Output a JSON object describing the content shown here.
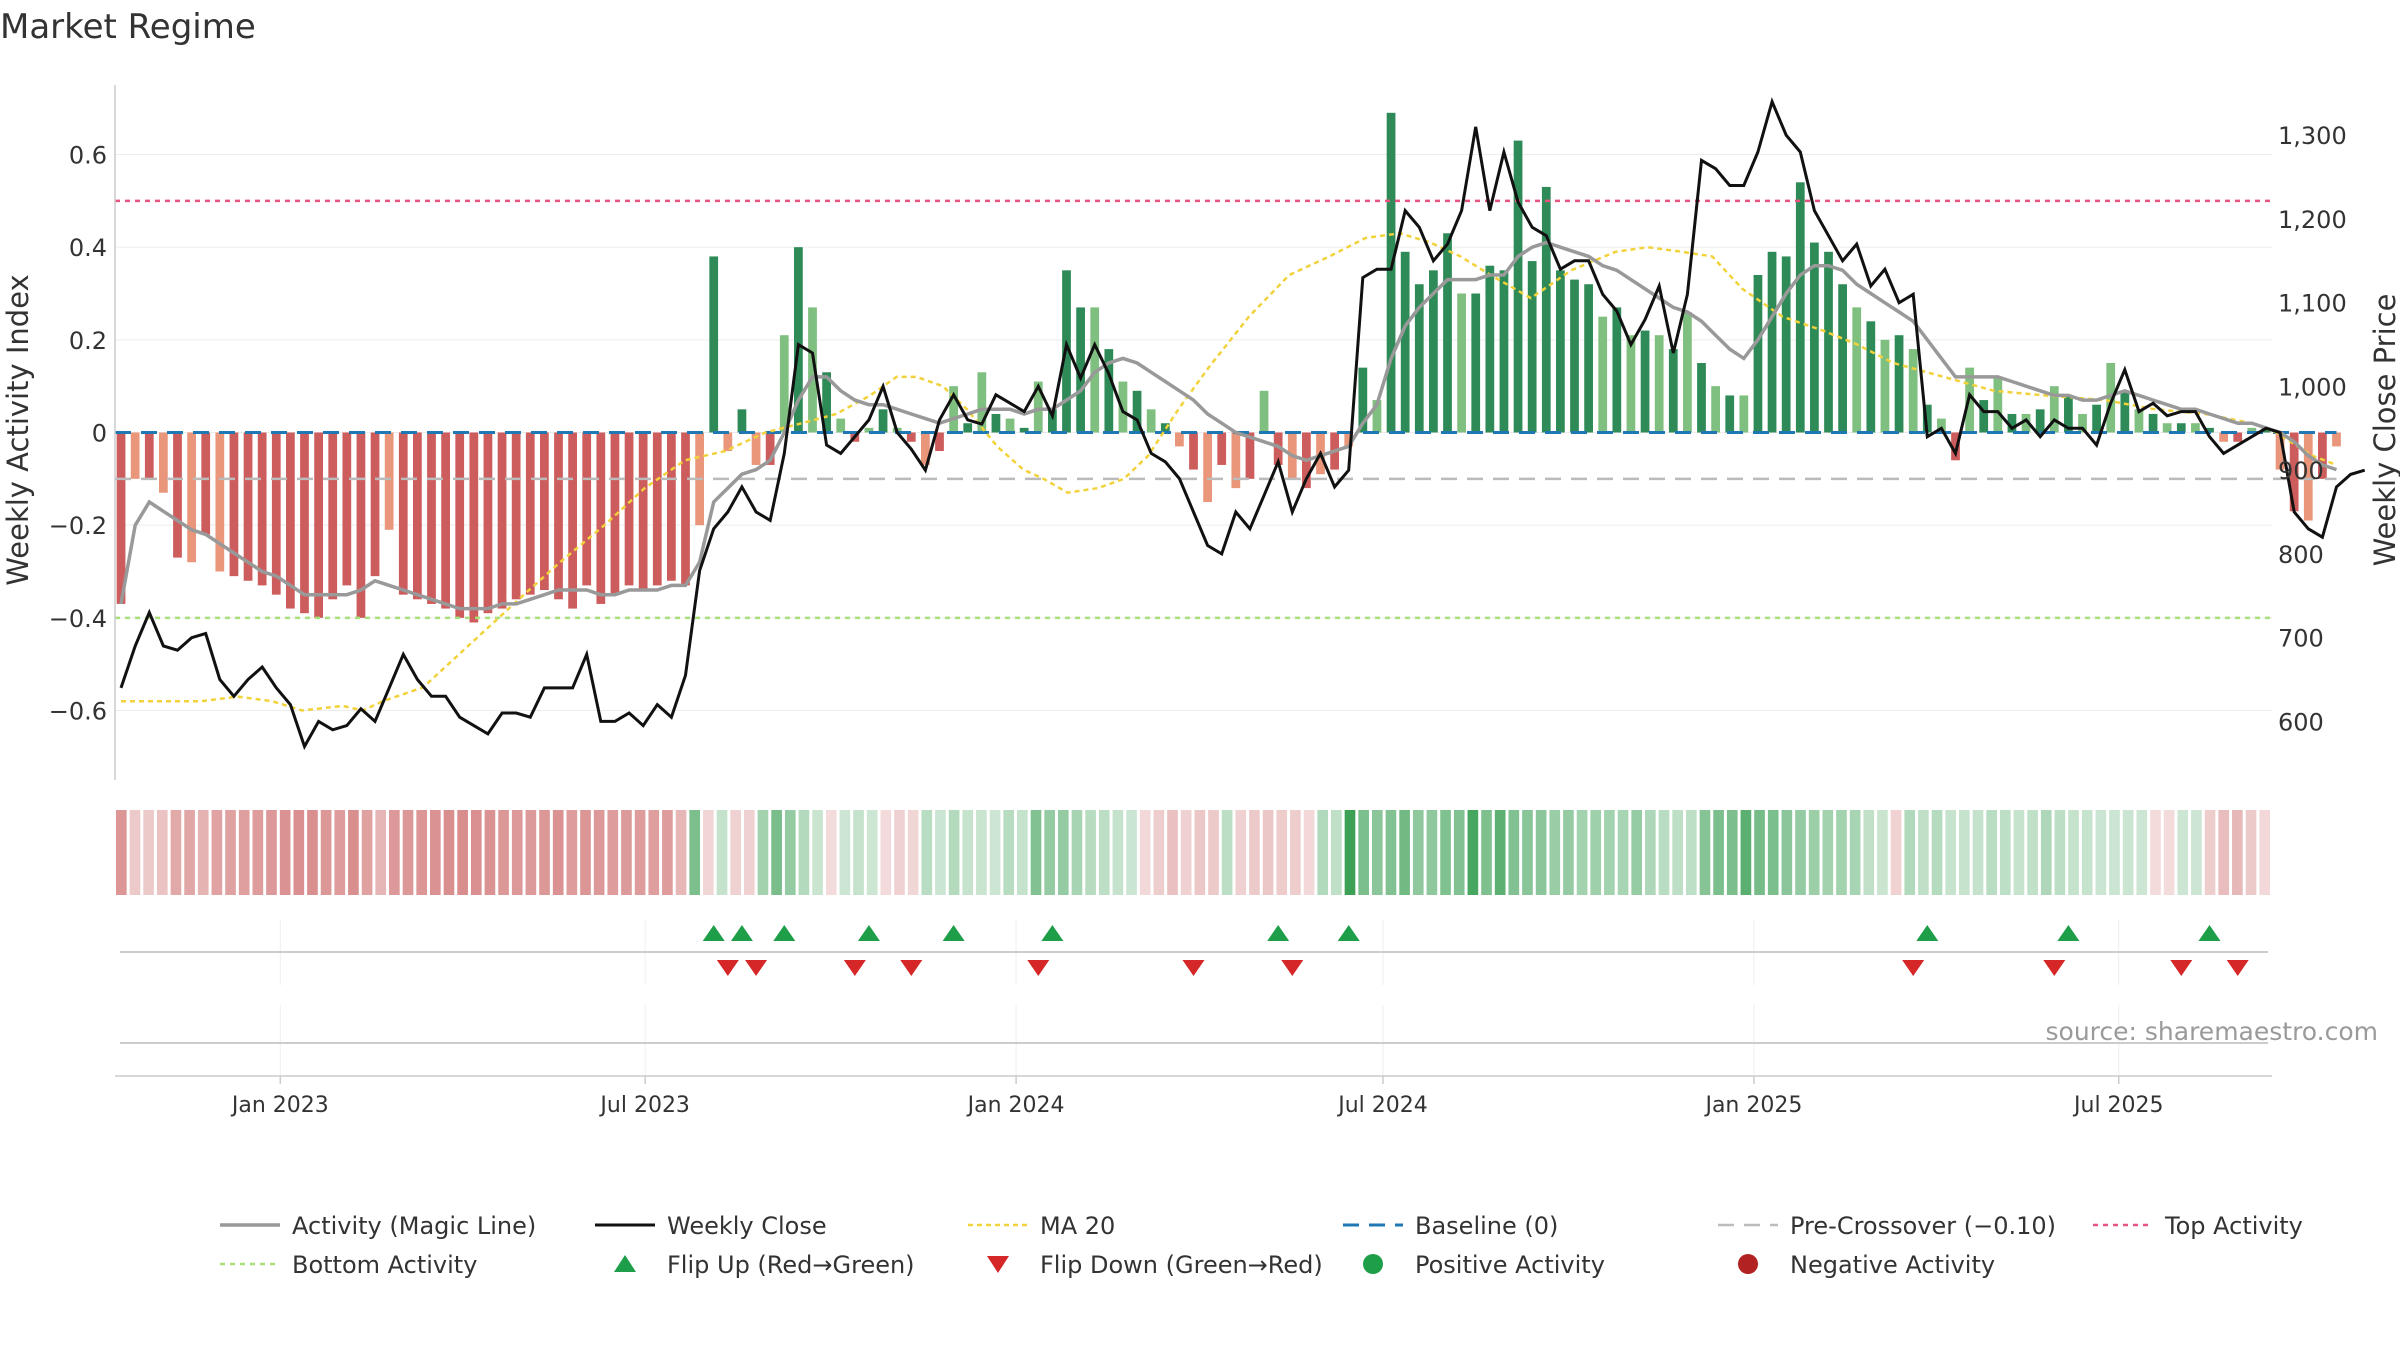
{
  "chart_data": {
    "type": "bar",
    "title": "Market Regime",
    "y_left_label": "Weekly Activity Index",
    "y_right_label": "Weekly Close Price",
    "y_left_range": [
      -0.75,
      0.75
    ],
    "y_left_ticks": [
      {
        "v": 0.6,
        "label": "0.6"
      },
      {
        "v": 0.4,
        "label": "0.4"
      },
      {
        "v": 0.2,
        "label": "0.2"
      },
      {
        "v": 0,
        "label": "0"
      },
      {
        "v": -0.2,
        "label": "−0.2"
      },
      {
        "v": -0.4,
        "label": "−0.4"
      },
      {
        "v": -0.6,
        "label": "−0.6"
      }
    ],
    "y_right_range": [
      530,
      1360
    ],
    "y_right_ticks": [
      {
        "v": 1300,
        "label": "1,300"
      },
      {
        "v": 1200,
        "label": "1,200"
      },
      {
        "v": 1100,
        "label": "1,100"
      },
      {
        "v": 1000,
        "label": "1,000"
      },
      {
        "v": 900,
        "label": "900"
      },
      {
        "v": 800,
        "label": "800"
      },
      {
        "v": 700,
        "label": "700"
      },
      {
        "v": 600,
        "label": "600"
      }
    ],
    "x_range": [
      "2022-10-11",
      "2025-09-15"
    ],
    "x_ticks": [
      {
        "date": "2023-01-01",
        "label": "Jan 2023"
      },
      {
        "date": "2023-07-01",
        "label": "Jul 2023"
      },
      {
        "date": "2024-01-01",
        "label": "Jan 2024"
      },
      {
        "date": "2024-07-01",
        "label": "Jul 2024"
      },
      {
        "date": "2025-01-01",
        "label": "Jan 2025"
      },
      {
        "date": "2025-07-01",
        "label": "Jul 2025"
      }
    ],
    "week_start": "2022-10-14",
    "activity": [
      -0.37,
      -0.1,
      -0.1,
      -0.13,
      -0.27,
      -0.28,
      -0.22,
      -0.3,
      -0.31,
      -0.32,
      -0.33,
      -0.35,
      -0.38,
      -0.39,
      -0.4,
      -0.36,
      -0.33,
      -0.4,
      -0.31,
      -0.21,
      -0.35,
      -0.36,
      -0.37,
      -0.38,
      -0.4,
      -0.41,
      -0.39,
      -0.38,
      -0.36,
      -0.35,
      -0.34,
      -0.36,
      -0.38,
      -0.33,
      -0.37,
      -0.35,
      -0.33,
      -0.34,
      -0.33,
      -0.32,
      -0.33,
      -0.2,
      0.38,
      -0.04,
      0.05,
      -0.07,
      -0.07,
      0.21,
      0.4,
      0.27,
      0.13,
      0.03,
      -0.02,
      0.01,
      0.05,
      0.01,
      -0.02,
      -0.07,
      -0.04,
      0.1,
      0.02,
      0.13,
      0.04,
      0.03,
      0.01,
      0.11,
      0.05,
      0.35,
      0.27,
      0.27,
      0.18,
      0.11,
      0.09,
      0.05,
      0.02,
      -0.03,
      -0.08,
      -0.15,
      -0.07,
      -0.12,
      -0.1,
      0.09,
      -0.07,
      -0.1,
      -0.12,
      -0.09,
      -0.08,
      -0.03,
      0.14,
      0.07,
      0.69,
      0.39,
      0.32,
      0.35,
      0.43,
      0.3,
      0.3,
      0.36,
      0.35,
      0.63,
      0.37,
      0.53,
      0.35,
      0.33,
      0.32,
      0.25,
      0.27,
      0.21,
      0.22,
      0.21,
      0.18,
      0.26,
      0.15,
      0.1,
      0.08,
      0.08,
      0.34,
      0.39,
      0.38,
      0.54,
      0.41,
      0.39,
      0.32,
      0.27,
      0.24,
      0.2,
      0.21,
      0.18,
      0.06,
      0.03,
      -0.06,
      0.14,
      0.07,
      0.12,
      0.04,
      0.04,
      0.05,
      0.1,
      0.08,
      0.04,
      0.06,
      0.15,
      0.09,
      0.05,
      0.04,
      0.02,
      0.02,
      0.02,
      0.01,
      -0.02,
      -0.02,
      0.01,
      0.01,
      -0.08,
      -0.17,
      -0.19,
      -0.1,
      -0.03
    ],
    "weekly_close": [
      640,
      690,
      730,
      690,
      685,
      700,
      705,
      650,
      630,
      650,
      665,
      640,
      620,
      570,
      600,
      590,
      595,
      615,
      600,
      640,
      680,
      650,
      630,
      630,
      605,
      595,
      585,
      610,
      610,
      605,
      640,
      640,
      640,
      680,
      600,
      600,
      610,
      595,
      620,
      605,
      655,
      780,
      830,
      850,
      880,
      850,
      840,
      920,
      1050,
      1040,
      930,
      920,
      940,
      960,
      1000,
      945,
      925,
      900,
      960,
      990,
      960,
      955,
      990,
      980,
      970,
      1000,
      965,
      1050,
      1010,
      1050,
      1015,
      970,
      960,
      920,
      910,
      890,
      850,
      810,
      800,
      850,
      830,
      870,
      910,
      850,
      890,
      920,
      880,
      900,
      1130,
      1140,
      1140,
      1210,
      1190,
      1150,
      1170,
      1210,
      1310,
      1210,
      1280,
      1220,
      1190,
      1180,
      1140,
      1150,
      1150,
      1110,
      1090,
      1050,
      1080,
      1120,
      1040,
      1110,
      1270,
      1260,
      1240,
      1240,
      1280,
      1340,
      1300,
      1280,
      1210,
      1180,
      1150,
      1170,
      1120,
      1140,
      1100,
      1110,
      940,
      950,
      920,
      990,
      970,
      970,
      950,
      960,
      940,
      960,
      950,
      950,
      930,
      980,
      1020,
      970,
      980,
      965,
      970,
      970,
      940,
      920,
      930,
      940,
      950,
      945,
      850,
      830,
      820,
      880,
      895,
      900
    ],
    "magic_line": [
      -0.37,
      -0.2,
      -0.15,
      -0.17,
      -0.19,
      -0.21,
      -0.22,
      -0.24,
      -0.26,
      -0.28,
      -0.3,
      -0.31,
      -0.33,
      -0.35,
      -0.35,
      -0.35,
      -0.35,
      -0.34,
      -0.32,
      -0.33,
      -0.34,
      -0.35,
      -0.36,
      -0.37,
      -0.38,
      -0.38,
      -0.38,
      -0.37,
      -0.37,
      -0.36,
      -0.35,
      -0.34,
      -0.34,
      -0.34,
      -0.35,
      -0.35,
      -0.34,
      -0.34,
      -0.34,
      -0.33,
      -0.33,
      -0.28,
      -0.15,
      -0.12,
      -0.09,
      -0.08,
      -0.06,
      0,
      0.07,
      0.12,
      0.12,
      0.09,
      0.07,
      0.06,
      0.06,
      0.05,
      0.04,
      0.03,
      0.02,
      0.03,
      0.04,
      0.05,
      0.05,
      0.05,
      0.04,
      0.05,
      0.05,
      0.07,
      0.09,
      0.13,
      0.15,
      0.16,
      0.15,
      0.13,
      0.11,
      0.09,
      0.07,
      0.04,
      0.02,
      0,
      -0.01,
      -0.02,
      -0.03,
      -0.05,
      -0.06,
      -0.05,
      -0.04,
      -0.03,
      0.02,
      0.06,
      0.16,
      0.23,
      0.27,
      0.3,
      0.33,
      0.33,
      0.33,
      0.34,
      0.34,
      0.38,
      0.4,
      0.41,
      0.4,
      0.39,
      0.38,
      0.36,
      0.35,
      0.33,
      0.31,
      0.29,
      0.27,
      0.26,
      0.24,
      0.21,
      0.18,
      0.16,
      0.2,
      0.25,
      0.3,
      0.34,
      0.36,
      0.36,
      0.35,
      0.32,
      0.3,
      0.28,
      0.26,
      0.24,
      0.2,
      0.16,
      0.12,
      0.12,
      0.12,
      0.12,
      0.11,
      0.1,
      0.09,
      0.08,
      0.08,
      0.07,
      0.07,
      0.08,
      0.09,
      0.08,
      0.07,
      0.06,
      0.05,
      0.05,
      0.04,
      0.03,
      0.02,
      0.02,
      0.01,
      0,
      -0.02,
      -0.05,
      -0.07,
      -0.08
    ],
    "ma20": [
      [
        0,
        -0.58
      ],
      [
        40,
        -0.58
      ],
      [
        58,
        -0.57
      ],
      [
        75,
        -0.58
      ],
      [
        90,
        -0.6
      ],
      [
        110,
        -0.59
      ],
      [
        120,
        -0.6
      ],
      [
        130,
        -0.58
      ],
      [
        150,
        -0.55
      ],
      [
        175,
        -0.45
      ],
      [
        200,
        -0.35
      ],
      [
        218,
        -0.28
      ],
      [
        240,
        -0.2
      ],
      [
        260,
        -0.12
      ],
      [
        280,
        -0.06
      ],
      [
        300,
        -0.04
      ],
      [
        320,
        0
      ],
      [
        338,
        0.02
      ],
      [
        355,
        0.04
      ],
      [
        372,
        0.08
      ],
      [
        385,
        0.12
      ],
      [
        395,
        0.12
      ],
      [
        408,
        0.1
      ],
      [
        420,
        0.05
      ],
      [
        435,
        -0.03
      ],
      [
        448,
        -0.08
      ],
      [
        458,
        -0.1
      ],
      [
        470,
        -0.13
      ],
      [
        485,
        -0.12
      ],
      [
        498,
        -0.1
      ],
      [
        510,
        -0.05
      ],
      [
        525,
        0.05
      ],
      [
        540,
        0.14
      ],
      [
        560,
        0.25
      ],
      [
        580,
        0.34
      ],
      [
        600,
        0.38
      ],
      [
        618,
        0.42
      ],
      [
        635,
        0.43
      ],
      [
        650,
        0.41
      ],
      [
        665,
        0.38
      ],
      [
        680,
        0.34
      ],
      [
        700,
        0.29
      ],
      [
        720,
        0.35
      ],
      [
        742,
        0.39
      ],
      [
        758,
        0.4
      ],
      [
        775,
        0.39
      ],
      [
        790,
        0.38
      ],
      [
        805,
        0.31
      ],
      [
        825,
        0.25
      ],
      [
        845,
        0.22
      ],
      [
        862,
        0.19
      ],
      [
        880,
        0.15
      ],
      [
        905,
        0.12
      ],
      [
        930,
        0.09
      ],
      [
        955,
        0.08
      ],
      [
        985,
        0.07
      ],
      [
        1010,
        0.05
      ],
      [
        1035,
        0.04
      ],
      [
        1058,
        0.02
      ],
      [
        1070,
        0.0
      ],
      [
        1088,
        -0.05
      ],
      [
        1100,
        -0.07
      ]
    ],
    "baseline": 0,
    "pre_crossover": -0.1,
    "top_activity": 0.5,
    "bottom_activity": -0.4,
    "flip_up_weeks": [
      42,
      44,
      47,
      53,
      59,
      66,
      82,
      87,
      128,
      138,
      148
    ],
    "flip_down_weeks": [
      43,
      45,
      52,
      56,
      65,
      76,
      83,
      127,
      137,
      146,
      150
    ],
    "legend": [
      {
        "key": "magic",
        "label": "Activity (Magic Line)"
      },
      {
        "key": "close",
        "label": "Weekly Close"
      },
      {
        "key": "ma20",
        "label": "MA 20"
      },
      {
        "key": "baseline",
        "label": "Baseline (0)"
      },
      {
        "key": "pre",
        "label": "Pre-Crossover (−0.10)"
      },
      {
        "key": "top",
        "label": "Top Activity"
      },
      {
        "key": "bottom",
        "label": "Bottom Activity"
      },
      {
        "key": "flipup",
        "label": "Flip Up (Red→Green)"
      },
      {
        "key": "flipdown",
        "label": "Flip Down (Green→Red)"
      },
      {
        "key": "pos",
        "label": "Positive Activity"
      },
      {
        "key": "neg",
        "label": "Negative Activity"
      }
    ],
    "source": "source: sharemaestro.com"
  },
  "colors": {
    "pos_dark": "#2e8b57",
    "pos_light": "#7fbf7f",
    "neg_dark": "#cd5c5c",
    "neg_light": "#e9967a",
    "magic": "#999999",
    "close": "#111111",
    "ma20": "#f2d23a",
    "baseline": "#1f77b4",
    "pre": "#bbbbbb",
    "top": "#e75480",
    "bottom": "#a8e07a",
    "flip_up": "#1f9e49",
    "flip_down": "#d62728",
    "pos_dot": "#1f9e49",
    "neg_dot": "#b22222"
  }
}
